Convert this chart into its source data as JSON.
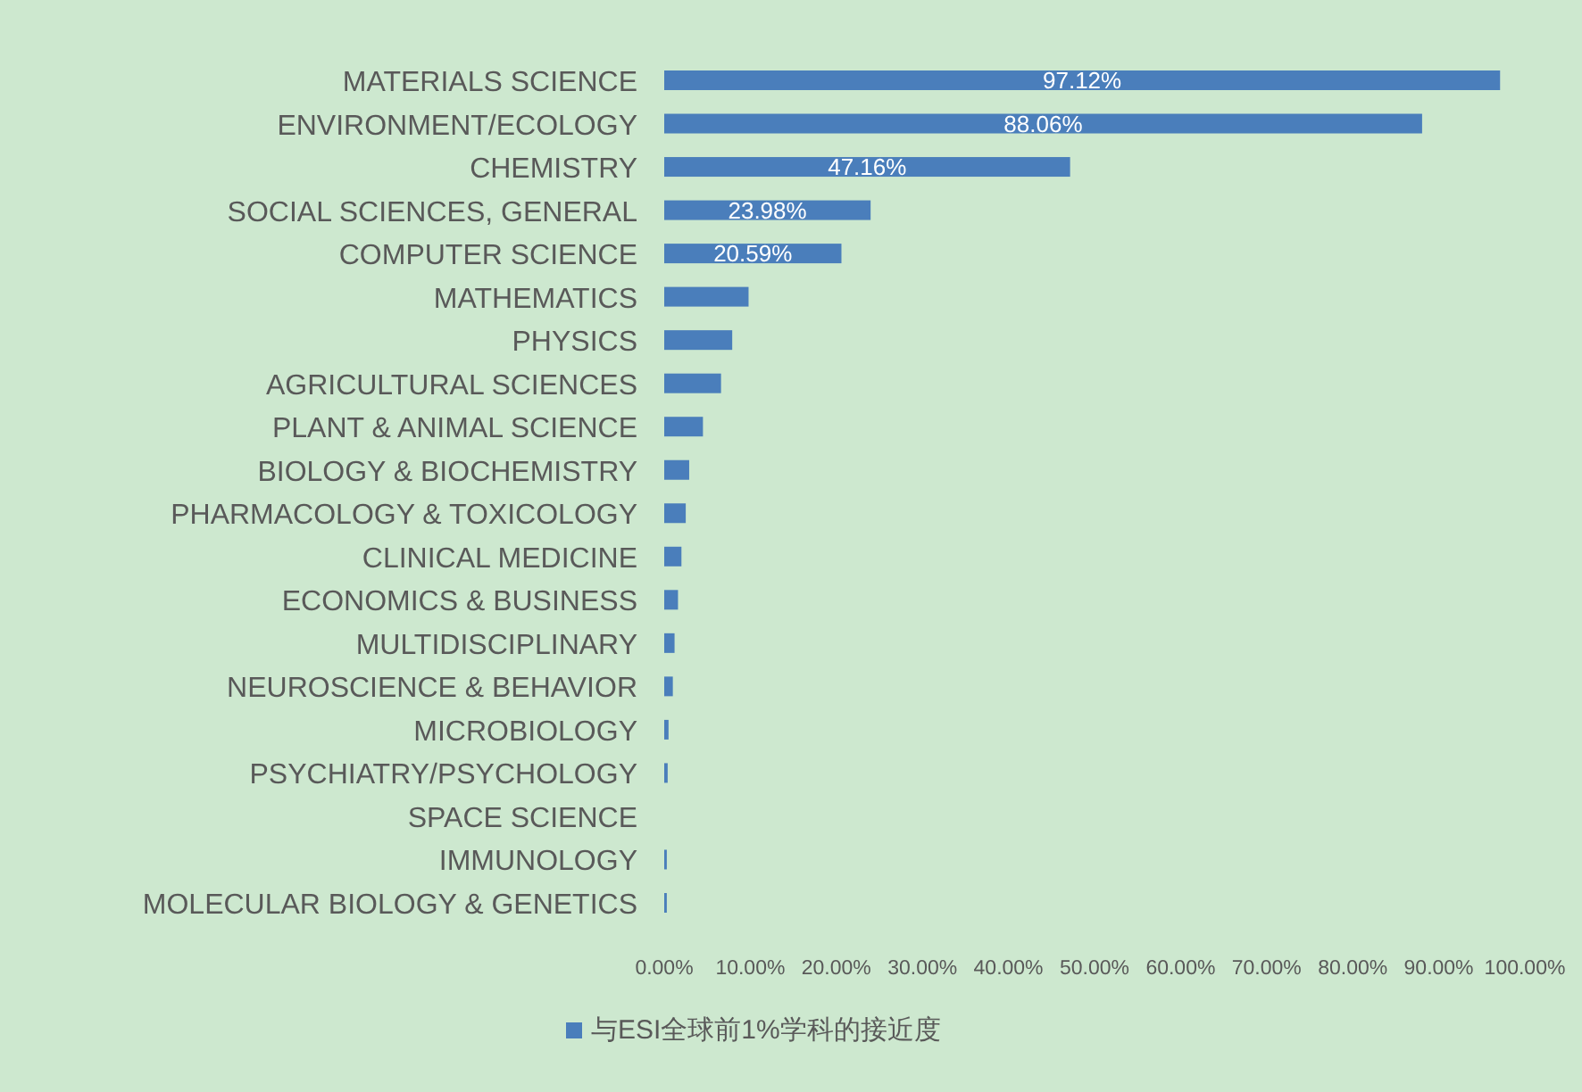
{
  "chart_data": {
    "type": "bar",
    "orientation": "horizontal",
    "legend": "bottom",
    "categories": [
      "MATERIALS SCIENCE",
      "ENVIRONMENT/ECOLOGY",
      "CHEMISTRY",
      "SOCIAL SCIENCES, GENERAL",
      "COMPUTER SCIENCE",
      "MATHEMATICS",
      "PHYSICS",
      "AGRICULTURAL SCIENCES",
      "PLANT & ANIMAL SCIENCE",
      "BIOLOGY & BIOCHEMISTRY",
      "PHARMACOLOGY & TOXICOLOGY",
      "CLINICAL MEDICINE",
      "ECONOMICS & BUSINESS",
      "MULTIDISCIPLINARY",
      "NEUROSCIENCE & BEHAVIOR",
      "MICROBIOLOGY",
      "PSYCHIATRY/PSYCHOLOGY",
      "SPACE SCIENCE",
      "IMMUNOLOGY",
      "MOLECULAR BIOLOGY & GENETICS"
    ],
    "series": [
      {
        "name": "与ESI全球前1%学科的接近度",
        "color": "#4a7ebb",
        "values": [
          97.12,
          88.06,
          47.16,
          23.98,
          20.59,
          9.8,
          7.9,
          6.6,
          4.5,
          2.9,
          2.5,
          2.0,
          1.6,
          1.2,
          1.0,
          0.5,
          0.4,
          0,
          0.3,
          0.3
        ],
        "value_labels": [
          "97.12%",
          "88.06%",
          "47.16%",
          "23.98%",
          "20.59%",
          null,
          null,
          null,
          null,
          null,
          null,
          null,
          null,
          null,
          null,
          null,
          null,
          null,
          null,
          null
        ]
      }
    ],
    "xlim": [
      0,
      100
    ],
    "xticks": [
      {
        "value": 0,
        "label": "0.00%"
      },
      {
        "value": 10,
        "label": "10.00%"
      },
      {
        "value": 20,
        "label": "20.00%"
      },
      {
        "value": 30,
        "label": "30.00%"
      },
      {
        "value": 40,
        "label": "40.00%"
      },
      {
        "value": 50,
        "label": "50.00%"
      },
      {
        "value": 60,
        "label": "60.00%"
      },
      {
        "value": 70,
        "label": "70.00%"
      },
      {
        "value": 80,
        "label": "80.00%"
      },
      {
        "value": 90,
        "label": "90.00%"
      },
      {
        "value": 100,
        "label": "100.00%"
      }
    ]
  }
}
